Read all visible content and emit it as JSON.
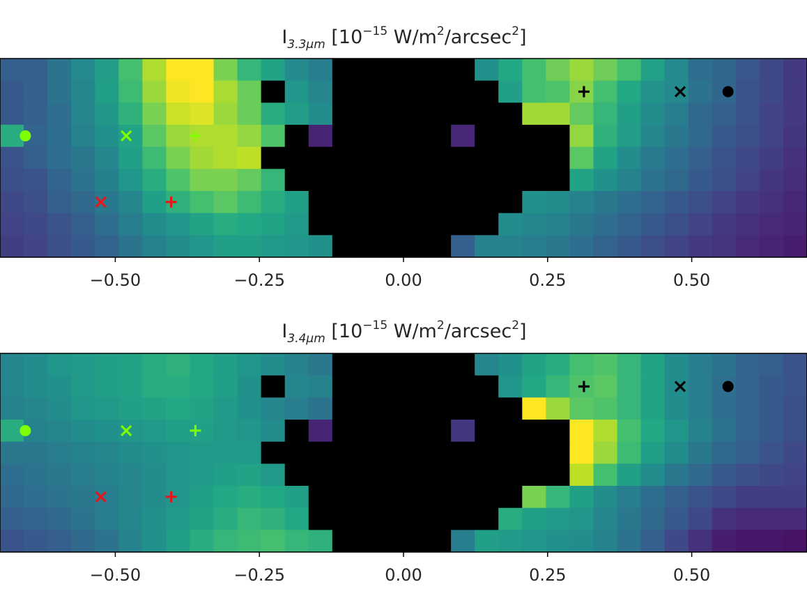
{
  "chart_data": [
    {
      "type": "heatmap",
      "title": {
        "main": "I",
        "subscript": "3.3μm",
        "units_prefix": " [10",
        "units_exp": "−15",
        "units_mid": " W/m",
        "units_exp2": "2",
        "units_mid2": "/arcsec",
        "units_exp3": "2",
        "units_suffix": "]"
      },
      "x_ticks": [
        "−0.50",
        "−0.25",
        "0.00",
        "0.25",
        "0.50"
      ],
      "x_tick_values": [
        -0.5,
        -0.25,
        0.0,
        0.25,
        0.5
      ],
      "xlim": [
        -0.7,
        0.7
      ],
      "colormap": "viridis",
      "masked_color": "#000000",
      "rows": [
        "0.30 0.30 0.38 0.47 0.55 0.70 0.88 1.00 1.00 0.80 0.66 0.58 0.47 0.42 -1 -1 -1 -1 -1 -1 0.50 0.60 0.70 0.78 0.85 0.78 0.70 0.57 0.47 0.36 0.33 0.27 0.22 0.17",
        "0.28 0.30 0.38 0.46 0.56 0.68 0.85 0.98 1.00 0.87 0.77 -1 0.52 0.45 -1 -1 -1 -1 -1 -1 -1 0.56 0.70 0.72 0.82 0.70 0.60 0.51 0.47 0.38 0.33 0.26 0.22 0.17",
        "0.28 0.30 0.36 0.46 0.53 0.64 0.80 0.92 0.95 0.85 0.77 0.62 0.55 0.48 -1 -1 -1 -1 -1 -1 -1 -1 0.86 0.86 0.76 0.66 0.56 0.48 0.42 0.34 0.30 0.25 0.20 0.17",
        "0.62 0.32 0.36 0.44 0.50 0.58 0.74 0.85 0.88 0.88 0.84 0.72 -1 0.10 -1 -1 -1 -1 -1 0.11 -1 -1 -1 -1 0.84 0.64 0.55 0.46 0.40 0.34 0.28 0.24 0.20 0.16",
        "0.26 0.30 0.36 0.40 0.46 0.56 0.68 0.80 0.86 0.88 0.90 -1 -1 -1 -1 -1 -1 -1 -1 -1 -1 -1 -1 -1 0.74 0.58 0.48 0.41 0.36 0.30 0.26 0.22 0.18 0.14",
        "0.24 0.26 0.32 0.38 0.43 0.52 0.62 0.72 0.80 0.80 0.76 0.66 -1 -1 -1 -1 -1 -1 -1 -1 -1 -1 -1 -1 0.58 0.50 0.44 0.38 0.34 0.28 0.24 0.20 0.16 0.13",
        "0.22 0.24 0.30 0.34 0.40 0.46 0.56 0.64 0.70 0.74 0.68 0.62 0.56 -1 -1 -1 -1 -1 -1 -1 -1 -1 0.50 0.48 0.44 0.40 0.36 0.32 0.28 0.24 0.20 0.17 0.14 0.11",
        "0.20 0.22 0.26 0.30 0.36 0.42 0.48 0.52 0.58 0.62 0.60 0.58 0.54 -1 -1 -1 -1 -1 -1 -1 -1 0.48 0.46 0.44 0.40 0.36 0.32 0.28 0.24 0.20 0.17 0.14 0.12 0.10",
        "0.18 0.20 0.24 0.28 0.32 0.38 0.44 0.48 0.52 0.56 0.56 0.54 0.52 0.50 -1 -1 -1 -1 -1 0.30 0.44 0.44 0.42 0.40 0.36 0.32 0.28 0.24 0.20 0.17 0.15 0.12 0.10 0.08"
      ],
      "markers": [
        {
          "shape": "circle",
          "x": -0.656,
          "row": 3,
          "color": "#7fff00"
        },
        {
          "shape": "x",
          "x": -0.481,
          "row": 3,
          "color": "#7fff00"
        },
        {
          "shape": "plus",
          "x": -0.361,
          "row": 3,
          "color": "#7fff00"
        },
        {
          "shape": "x",
          "x": -0.525,
          "row": 6,
          "color": "#e8141b"
        },
        {
          "shape": "plus",
          "x": -0.403,
          "row": 6,
          "color": "#e8141b"
        },
        {
          "shape": "plus",
          "x": 0.313,
          "row": 1,
          "color": "#000000"
        },
        {
          "shape": "x",
          "x": 0.48,
          "row": 1,
          "color": "#000000"
        },
        {
          "shape": "circle",
          "x": 0.563,
          "row": 1,
          "color": "#000000"
        }
      ]
    },
    {
      "type": "heatmap",
      "title": {
        "main": "I",
        "subscript": "3.4μm",
        "units_prefix": " [10",
        "units_exp": "−15",
        "units_mid": " W/m",
        "units_exp2": "2",
        "units_mid2": "/arcsec",
        "units_exp3": "2",
        "units_suffix": "]"
      },
      "x_ticks": [
        "−0.50",
        "−0.25",
        "0.00",
        "0.25",
        "0.50"
      ],
      "x_tick_values": [
        -0.5,
        -0.25,
        0.0,
        0.25,
        0.5
      ],
      "xlim": [
        -0.7,
        0.7
      ],
      "colormap": "viridis",
      "masked_color": "#000000",
      "rows": [
        "0.46 0.48 0.52 0.54 0.56 0.58 0.62 0.64 0.60 0.56 0.52 0.48 0.44 0.40 -1 -1 -1 -1 -1 -1 0.46 0.50 0.58 0.62 0.70 0.72 0.66 0.58 0.48 0.42 0.38 0.32 0.30 0.26",
        "0.46 0.48 0.50 0.54 0.56 0.58 0.62 0.62 0.60 0.56 0.50 -1 0.46 0.44 -1 -1 -1 -1 -1 -1 -1 0.52 0.60 0.66 0.72 0.74 0.66 0.58 0.48 0.42 0.36 0.32 0.28 0.26",
        "0.44 0.46 0.48 0.52 0.54 0.56 0.58 0.60 0.58 0.54 0.50 0.46 0.42 0.38 -1 -1 -1 -1 -1 -1 -1 -1 1.00 0.85 0.74 0.72 0.66 0.58 0.48 0.42 0.36 0.32 0.28 0.24",
        "0.62 0.44 0.46 0.48 0.50 0.52 0.54 0.56 0.56 0.54 0.52 0.48 -1 0.10 -1 -1 -1 -1 -1 0.16 -1 -1 -1 -1 1.00 0.88 0.70 0.60 0.52 0.44 0.38 0.32 0.28 0.24",
        "0.40 0.40 0.42 0.44 0.46 0.48 0.50 0.52 0.54 0.54 0.54 -1 -1 -1 -1 -1 -1 -1 -1 -1 -1 -1 -1 -1 1.00 0.85 0.68 0.56 0.48 0.40 0.34 0.30 0.26 0.22",
        "0.36 0.38 0.40 0.42 0.44 0.46 0.48 0.52 0.54 0.56 0.58 0.54 -1 -1 -1 -1 -1 -1 -1 -1 -1 -1 -1 -1 0.90 0.70 0.56 0.48 0.40 0.34 0.28 0.24 0.22 0.20",
        "0.34 0.36 0.38 0.40 0.42 0.46 0.48 0.52 0.56 0.60 0.62 0.60 0.56 -1 -1 -1 -1 -1 -1 -1 -1 -1 0.80 0.66 0.56 0.48 0.42 0.36 0.30 0.26 0.22 0.18 0.18 0.18",
        "0.30 0.32 0.34 0.38 0.42 0.46 0.50 0.54 0.58 0.62 0.66 0.64 0.60 -1 -1 -1 -1 -1 -1 -1 -1 0.62 0.56 0.54 0.52 0.46 0.40 0.34 0.28 0.22 0.14 0.12 0.12 0.12",
        "0.26 0.28 0.30 0.34 0.38 0.44 0.50 0.56 0.62 0.66 0.68 0.70 0.66 0.64 -1 -1 -1 -1 -1 0.42 0.56 0.54 0.52 0.50 0.48 0.44 0.38 0.30 0.22 0.14 0.08 0.06 0.06 0.05"
      ],
      "markers": [
        {
          "shape": "circle",
          "x": -0.656,
          "row": 3,
          "color": "#7fff00"
        },
        {
          "shape": "x",
          "x": -0.481,
          "row": 3,
          "color": "#7fff00"
        },
        {
          "shape": "plus",
          "x": -0.361,
          "row": 3,
          "color": "#7fff00"
        },
        {
          "shape": "x",
          "x": -0.525,
          "row": 6,
          "color": "#e8141b"
        },
        {
          "shape": "plus",
          "x": -0.403,
          "row": 6,
          "color": "#e8141b"
        },
        {
          "shape": "plus",
          "x": 0.313,
          "row": 1,
          "color": "#000000"
        },
        {
          "shape": "x",
          "x": 0.48,
          "row": 1,
          "color": "#000000"
        },
        {
          "shape": "circle",
          "x": 0.563,
          "row": 1,
          "color": "#000000"
        }
      ]
    }
  ]
}
